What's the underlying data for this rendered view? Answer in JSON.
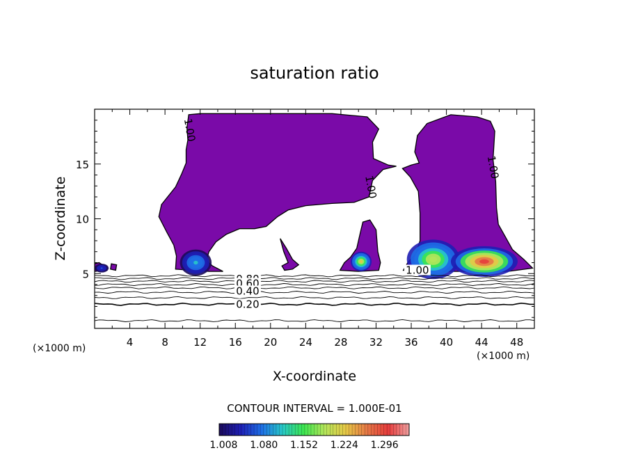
{
  "chart_data": {
    "type": "heatmap",
    "title": "saturation ratio",
    "xlabel": "X-coordinate",
    "ylabel": "Z-coordinate",
    "x_unit_left": "(×1000 m)",
    "x_unit_right": "(×1000 m)",
    "xlim": [
      0,
      50
    ],
    "ylim": [
      0,
      20
    ],
    "x_ticks": [
      4,
      8,
      12,
      16,
      20,
      24,
      28,
      32,
      36,
      40,
      44,
      48
    ],
    "y_ticks": [
      5,
      10,
      15
    ],
    "x_tick_labels": [
      "4",
      "8",
      "12",
      "16",
      "20",
      "24",
      "28",
      "32",
      "36",
      "40",
      "44",
      "48"
    ],
    "y_tick_labels": [
      "5",
      "10",
      "15"
    ],
    "contour_interval_text": "CONTOUR INTERVAL = 1.000E-01",
    "colorbar": {
      "tick_values": [
        1.008,
        1.08,
        1.152,
        1.224,
        1.296
      ],
      "tick_labels": [
        "1.008",
        "1.080",
        "1.152",
        "1.224",
        "1.296"
      ],
      "colors": [
        "#1a0a5a",
        "#1e1eb4",
        "#1e6ee6",
        "#28c8c8",
        "#3ce650",
        "#b4e65a",
        "#e6c846",
        "#e67846",
        "#e63c3c",
        "#f0a0a0"
      ]
    },
    "contour_labels": [
      {
        "text": "1.00",
        "x": 10.8,
        "y": 18.1
      },
      {
        "text": "1.00",
        "x": 31.4,
        "y": 12.9
      },
      {
        "text": "1.00",
        "x": 45.3,
        "y": 14.7
      },
      {
        "text": "1.00",
        "x": 36.7,
        "y": 5.3
      },
      {
        "text": "0.80",
        "x": 17.4,
        "y": 4.5
      },
      {
        "text": "0.60",
        "x": 17.4,
        "y": 4.1
      },
      {
        "text": "0.40",
        "x": 17.4,
        "y": 3.4
      },
      {
        "text": "0.20",
        "x": 17.4,
        "y": 2.2
      }
    ],
    "contour_levels": [
      0.1,
      0.2,
      0.3,
      0.4,
      0.5,
      0.6,
      0.7,
      0.8,
      0.9
    ],
    "contour_level_heights": [
      0.7,
      2.2,
      2.8,
      3.3,
      3.7,
      4.0,
      4.3,
      4.55,
      4.8
    ],
    "supersaturated_regions": [
      {
        "name": "left-anvil",
        "outline": [
          [
            7.3,
            10.2
          ],
          [
            7.6,
            11.3
          ],
          [
            8.3,
            12.0
          ],
          [
            9.2,
            12.9
          ],
          [
            9.9,
            14.1
          ],
          [
            10.4,
            15.1
          ],
          [
            10.4,
            16.3
          ],
          [
            10.6,
            17.2
          ],
          [
            10.5,
            18.3
          ],
          [
            10.7,
            19.5
          ],
          [
            12.0,
            19.6
          ],
          [
            20.0,
            19.6
          ],
          [
            27.0,
            19.6
          ],
          [
            31.0,
            19.3
          ],
          [
            32.3,
            18.2
          ],
          [
            31.6,
            17.0
          ],
          [
            31.7,
            15.5
          ],
          [
            33.4,
            14.9
          ],
          [
            34.3,
            14.8
          ],
          [
            32.8,
            14.5
          ],
          [
            31.6,
            13.5
          ],
          [
            31.2,
            12.0
          ],
          [
            29.5,
            11.5
          ],
          [
            27.0,
            11.4
          ],
          [
            24.0,
            11.2
          ],
          [
            22.0,
            10.8
          ],
          [
            20.8,
            10.2
          ],
          [
            19.5,
            9.3
          ],
          [
            18.2,
            9.1
          ],
          [
            16.5,
            9.1
          ],
          [
            15.0,
            8.6
          ],
          [
            13.8,
            7.9
          ],
          [
            13.0,
            7.0
          ],
          [
            12.7,
            6.2
          ],
          [
            13.4,
            5.7
          ],
          [
            14.6,
            5.2
          ],
          [
            13.0,
            5.2
          ],
          [
            11.0,
            5.3
          ],
          [
            9.2,
            5.4
          ],
          [
            9.3,
            6.6
          ],
          [
            9.0,
            7.6
          ],
          [
            8.2,
            8.8
          ],
          [
            7.3,
            10.2
          ]
        ]
      },
      {
        "name": "hanging-lobe",
        "outline": [
          [
            21.1,
            8.2
          ],
          [
            21.8,
            7.3
          ],
          [
            22.5,
            6.3
          ],
          [
            23.2,
            5.8
          ],
          [
            22.5,
            5.4
          ],
          [
            21.6,
            5.3
          ],
          [
            21.3,
            5.7
          ],
          [
            22.0,
            6.0
          ],
          [
            21.5,
            7.0
          ],
          [
            21.1,
            8.2
          ]
        ]
      },
      {
        "name": "small-cell",
        "outline": [
          [
            27.9,
            5.3
          ],
          [
            28.4,
            6.0
          ],
          [
            29.1,
            6.5
          ],
          [
            29.8,
            7.3
          ],
          [
            30.2,
            8.7
          ],
          [
            30.5,
            9.7
          ],
          [
            31.3,
            9.9
          ],
          [
            32.0,
            9.0
          ],
          [
            32.2,
            7.0
          ],
          [
            32.5,
            6.0
          ],
          [
            32.3,
            5.3
          ],
          [
            30.0,
            5.2
          ],
          [
            27.9,
            5.3
          ]
        ]
      },
      {
        "name": "right-tower",
        "outline": [
          [
            35.1,
            5.3
          ],
          [
            35.6,
            6.0
          ],
          [
            36.5,
            6.8
          ],
          [
            37.0,
            8.0
          ],
          [
            37.0,
            10.5
          ],
          [
            36.8,
            12.5
          ],
          [
            35.9,
            13.8
          ],
          [
            35.0,
            14.6
          ],
          [
            36.0,
            14.9
          ],
          [
            36.9,
            15.1
          ],
          [
            36.4,
            16.1
          ],
          [
            36.7,
            17.6
          ],
          [
            37.8,
            18.7
          ],
          [
            40.5,
            19.5
          ],
          [
            43.5,
            19.3
          ],
          [
            45.0,
            18.9
          ],
          [
            45.5,
            18.0
          ],
          [
            45.3,
            15.4
          ],
          [
            45.6,
            13.4
          ],
          [
            45.7,
            11.0
          ],
          [
            45.9,
            9.5
          ],
          [
            46.6,
            8.5
          ],
          [
            47.5,
            7.2
          ],
          [
            48.8,
            6.3
          ],
          [
            49.8,
            5.5
          ],
          [
            47.0,
            5.2
          ],
          [
            44.0,
            5.2
          ],
          [
            41.0,
            5.2
          ],
          [
            38.0,
            5.2
          ],
          [
            35.1,
            5.3
          ]
        ]
      },
      {
        "name": "left-edge",
        "outline": [
          [
            0.0,
            5.2
          ],
          [
            0.0,
            5.9
          ],
          [
            0.5,
            6.0
          ],
          [
            1.1,
            5.7
          ],
          [
            1.4,
            5.3
          ],
          [
            0.0,
            5.2
          ]
        ]
      },
      {
        "name": "left-edge-dot",
        "outline": [
          [
            1.8,
            5.4
          ],
          [
            1.9,
            5.9
          ],
          [
            2.5,
            5.8
          ],
          [
            2.4,
            5.3
          ],
          [
            1.8,
            5.4
          ]
        ]
      }
    ],
    "cores": [
      {
        "x": 11.5,
        "y": 6.0,
        "rx": 1.8,
        "ry": 1.2,
        "peak": 1.1
      },
      {
        "x": 30.3,
        "y": 6.1,
        "rx": 1.2,
        "ry": 0.9,
        "peak": 1.22
      },
      {
        "x": 38.5,
        "y": 6.3,
        "rx": 3.0,
        "ry": 1.8,
        "peak": 1.2
      },
      {
        "x": 44.3,
        "y": 6.1,
        "rx": 3.8,
        "ry": 1.4,
        "peak": 1.32
      },
      {
        "x": 0.8,
        "y": 5.5,
        "rx": 0.8,
        "ry": 0.4,
        "peak": 1.06
      }
    ]
  }
}
